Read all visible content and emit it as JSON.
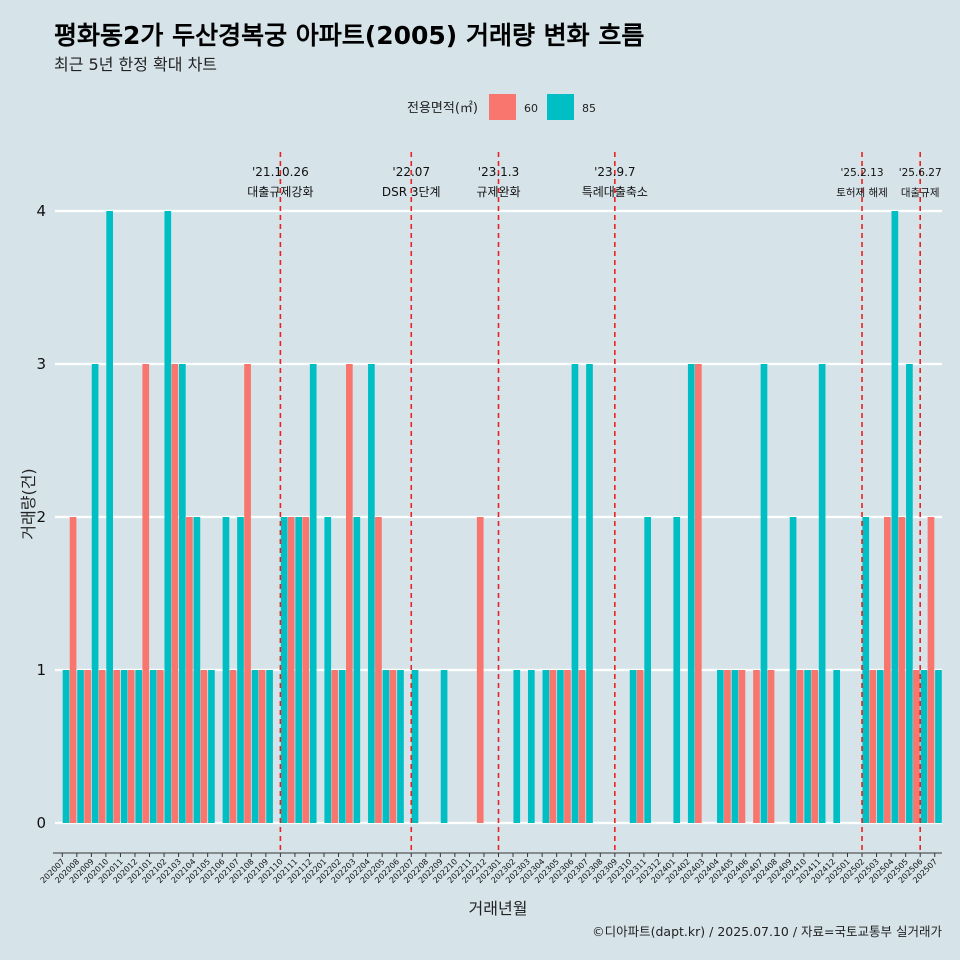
{
  "chart_data": {
    "type": "bar",
    "title": "평화동2가 두산경복궁 아파트(2005) 거래량 변화 흐름",
    "subtitle": "최근 5년 한정 확대 차트",
    "xlabel": "거래년월",
    "ylabel": "거래량(건)",
    "ylim": [
      0,
      4
    ],
    "yticks": [
      "0",
      "1",
      "2",
      "3",
      "4"
    ],
    "legend": {
      "title": "전용면적(㎡)",
      "position": "top"
    },
    "categories": [
      "202007",
      "202008",
      "202009",
      "202010",
      "202011",
      "202012",
      "202101",
      "202102",
      "202103",
      "202104",
      "202105",
      "202106",
      "202107",
      "202108",
      "202109",
      "202110",
      "202111",
      "202112",
      "202201",
      "202202",
      "202203",
      "202204",
      "202205",
      "202206",
      "202207",
      "202208",
      "202209",
      "202210",
      "202211",
      "202212",
      "202301",
      "202302",
      "202303",
      "202304",
      "202305",
      "202306",
      "202307",
      "202308",
      "202309",
      "202310",
      "202311",
      "202312",
      "202401",
      "202402",
      "202403",
      "202404",
      "202405",
      "202406",
      "202407",
      "202408",
      "202409",
      "202410",
      "202411",
      "202412",
      "202501",
      "202502",
      "202503",
      "202504",
      "202505",
      "202506",
      "202507"
    ],
    "series": [
      {
        "name": "60",
        "color": "#f8766d",
        "values": [
          0,
          2,
          1,
          1,
          1,
          1,
          3,
          1,
          3,
          2,
          1,
          0,
          1,
          3,
          1,
          0,
          2,
          2,
          0,
          1,
          3,
          0,
          2,
          1,
          0,
          0,
          0,
          0,
          0,
          2,
          0,
          0,
          0,
          0,
          1,
          1,
          1,
          0,
          0,
          0,
          1,
          0,
          0,
          0,
          3,
          0,
          1,
          1,
          1,
          1,
          0,
          1,
          1,
          0,
          0,
          0,
          1,
          2,
          2,
          1,
          2
        ]
      },
      {
        "name": "85",
        "color": "#00bfc4",
        "values": [
          1,
          1,
          3,
          4,
          1,
          1,
          1,
          4,
          3,
          2,
          1,
          2,
          2,
          1,
          1,
          2,
          2,
          3,
          2,
          1,
          2,
          3,
          1,
          1,
          1,
          0,
          1,
          0,
          0,
          0,
          0,
          1,
          1,
          1,
          1,
          3,
          3,
          0,
          0,
          1,
          2,
          0,
          2,
          3,
          0,
          1,
          1,
          0,
          3,
          0,
          2,
          1,
          3,
          1,
          0,
          2,
          1,
          4,
          3,
          1,
          1
        ]
      }
    ],
    "events": [
      {
        "category": "202110",
        "date": "'21.10.26",
        "label": "대출규제강화"
      },
      {
        "category": "202207",
        "date": "'22.07",
        "label": "DSR 3단계"
      },
      {
        "category": "202301",
        "date": "'23.1.3",
        "label": "규제완화"
      },
      {
        "category": "202309",
        "date": "'23.9.7",
        "label": "특례대출축소"
      },
      {
        "category": "202502",
        "date": "'25.2.13",
        "label": "토허제 해제"
      },
      {
        "category": "202506",
        "date": "'25.6.27",
        "label": "대출규제"
      }
    ],
    "caption": "©디아파트(dapt.kr) / 2025.07.10 / 자료=국토교통부 실거래가"
  }
}
